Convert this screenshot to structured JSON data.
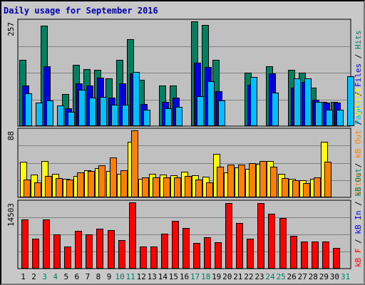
{
  "chart_data": {
    "type": "bar",
    "title": "Daily usage for September 2016",
    "categories": [
      "1",
      "2",
      "3",
      "4",
      "5",
      "6",
      "7",
      "8",
      "9",
      "10",
      "11",
      "12",
      "13",
      "14",
      "15",
      "16",
      "17",
      "18",
      "19",
      "20",
      "21",
      "22",
      "23",
      "24",
      "25",
      "26",
      "27",
      "28",
      "29",
      "30",
      "31"
    ],
    "weekend_days": [
      "3",
      "4",
      "10",
      "11",
      "17",
      "18",
      "24",
      "25",
      "31"
    ],
    "colors": {
      "hits": "#008060",
      "files": "#0000e0",
      "pages": "#00c0ff",
      "visits": "#ffff00",
      "sites": "#ff8000",
      "kbytes": "#ff0000",
      "weekday_label": "#000000",
      "weekend_label": "#008060",
      "title": "#0000b0"
    },
    "panels": [
      {
        "id": "top",
        "ymax": 257,
        "ymax_label": "257",
        "right_labels": [
          {
            "text": "Pages",
            "color": "#00c0ff"
          },
          {
            "text": " / ",
            "color": "#000000"
          },
          {
            "text": "Files",
            "color": "#0000e0"
          },
          {
            "text": " / ",
            "color": "#000000"
          },
          {
            "text": "Hits",
            "color": "#008060"
          }
        ],
        "series": [
          {
            "key": "hits",
            "values": [
              163,
              0,
              247,
              0,
              78,
              150,
              140,
              138,
              118,
              162,
              214,
              113,
              0,
              100,
              100,
              0,
              257,
              248,
              163,
              0,
              0,
              131,
              0,
              146,
              0,
              138,
              131,
              94,
              60,
              60,
              0
            ]
          },
          {
            "key": "files",
            "values": [
              100,
              0,
              147,
              0,
              43,
              105,
              100,
              119,
              70,
              105,
              130,
              55,
              0,
              60,
              70,
              0,
              155,
              145,
              85,
              0,
              0,
              102,
              0,
              130,
              0,
              95,
              108,
              64,
              58,
              58,
              0
            ]
          },
          {
            "key": "pages",
            "values": [
              80,
              57,
              63,
              50,
              35,
              90,
              70,
              71,
              53,
              53,
              133,
              40,
              0,
              43,
              47,
              0,
              73,
              110,
              63,
              0,
              0,
              120,
              0,
              82,
              0,
              118,
              118,
              60,
              40,
              40,
              122
            ]
          }
        ]
      },
      {
        "id": "middle",
        "ymax": 88,
        "ymax_label": "88",
        "right_labels": [
          {
            "text": "Sites",
            "color": "#ff8000"
          },
          {
            "text": " / ",
            "color": "#000000"
          },
          {
            "text": "kB Out",
            "color": "#ff8000"
          },
          {
            "text": " / ",
            "color": "#000000"
          },
          {
            "text": "Visits",
            "color": "#ffff00"
          }
        ],
        "series": [
          {
            "key": "visits",
            "values": [
              47,
              30,
              48,
              31,
              24,
              28,
              36,
              38,
              35,
              31,
              73,
              24,
              31,
              30,
              29,
              34,
              29,
              27,
              57,
              33,
              39,
              37,
              44,
              48,
              31,
              24,
              22,
              24,
              73,
              0,
              0
            ]
          },
          {
            "key": "sites",
            "values": [
              23,
              20,
              28,
              25,
              23,
              33,
              35,
              42,
              52,
              36,
              88,
              26,
              26,
              26,
              26,
              28,
              23,
              20,
              40,
              43,
              43,
              45,
              48,
              40,
              25,
              22,
              19,
              26,
              47,
              0,
              0
            ]
          }
        ]
      },
      {
        "id": "bottom",
        "ymax": 14503,
        "ymax_label": "14503",
        "right_labels": [
          {
            "text": "kB F",
            "color": "#ff0000"
          },
          {
            "text": " / ",
            "color": "#000000"
          },
          {
            "text": "kB In",
            "color": "#0000e0"
          },
          {
            "text": " / ",
            "color": "#000000"
          },
          {
            "text": "kB Out",
            "color": "#008060"
          }
        ],
        "series": [
          {
            "key": "kbytes",
            "values": [
              10700,
              6600,
              10800,
              7500,
              4900,
              8200,
              7500,
              8700,
              8400,
              6200,
              14503,
              4900,
              4900,
              7600,
              10500,
              8900,
              5600,
              6800,
              5800,
              14400,
              10000,
              6500,
              14400,
              12000,
              11000,
              7100,
              5900,
              5900,
              5900,
              4600,
              0
            ]
          }
        ]
      }
    ]
  }
}
